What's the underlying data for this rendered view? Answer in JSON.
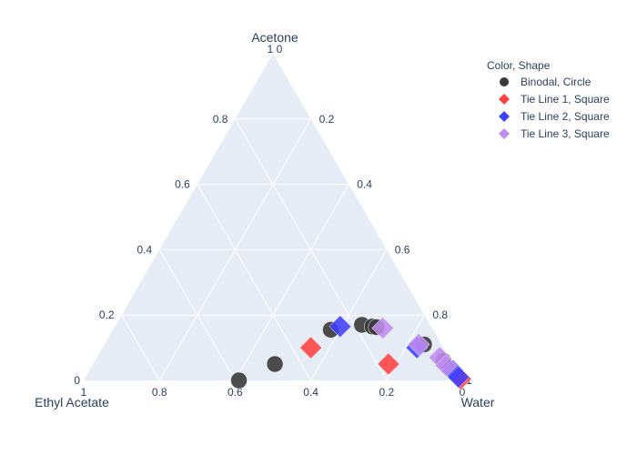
{
  "chart_data": {
    "type": "scatter",
    "ternary": true,
    "axes": {
      "a": "Acetone",
      "b": "Ethyl Acetate",
      "c": "Water"
    },
    "ticks": [
      "0.2",
      "0.4",
      "0.6",
      "0.8"
    ],
    "tick_zero": "0",
    "tick_one": "1",
    "grid": true,
    "background": "#e5ecf6",
    "legend": {
      "title": "Color, Shape",
      "placement": "top-right",
      "items": [
        {
          "label": "Binodal, Circle",
          "color": "#3a3a3a",
          "shape": "circle"
        },
        {
          "label": "Tie Line 1, Square",
          "color": "#ff4040",
          "shape": "diamond"
        },
        {
          "label": "Tie Line 2, Square",
          "color": "#4040ff",
          "shape": "diamond"
        },
        {
          "label": "Tie Line 3, Square",
          "color": "#c08cf0",
          "shape": "diamond"
        }
      ]
    },
    "series": [
      {
        "name": "Binodal, Circle",
        "points": [
          {
            "a": 0.0,
            "b": 0.59,
            "c": 0.41
          },
          {
            "a": 0.05,
            "b": 0.47,
            "c": 0.48
          },
          {
            "a": 0.155,
            "b": 0.27,
            "c": 0.575
          },
          {
            "a": 0.17,
            "b": 0.18,
            "c": 0.65
          },
          {
            "a": 0.165,
            "b": 0.155,
            "c": 0.68
          },
          {
            "a": 0.163,
            "b": 0.145,
            "c": 0.692
          },
          {
            "a": 0.11,
            "b": 0.046,
            "c": 0.844
          },
          {
            "a": 0.06,
            "b": 0.02,
            "c": 0.92
          },
          {
            "a": 0.02,
            "b": 0.008,
            "c": 0.972
          }
        ]
      },
      {
        "name": "Tie Line 1, Square",
        "points": [
          {
            "a": 0.1,
            "b": 0.35,
            "c": 0.55
          },
          {
            "a": 0.05,
            "b": 0.17,
            "c": 0.78
          },
          {
            "a": 0.005,
            "b": 0.002,
            "c": 0.993
          }
        ]
      },
      {
        "name": "Tie Line 2, Square",
        "points": [
          {
            "a": 0.165,
            "b": 0.24,
            "c": 0.595
          },
          {
            "a": 0.1,
            "b": 0.07,
            "c": 0.83
          },
          {
            "a": 0.03,
            "b": 0.01,
            "c": 0.96
          },
          {
            "a": 0.01,
            "b": 0.005,
            "c": 0.985
          }
        ]
      },
      {
        "name": "Tie Line 3, Square",
        "points": [
          {
            "a": 0.16,
            "b": 0.13,
            "c": 0.71
          },
          {
            "a": 0.11,
            "b": 0.06,
            "c": 0.83
          },
          {
            "a": 0.07,
            "b": 0.025,
            "c": 0.905
          },
          {
            "a": 0.045,
            "b": 0.02,
            "c": 0.935
          }
        ]
      }
    ]
  }
}
